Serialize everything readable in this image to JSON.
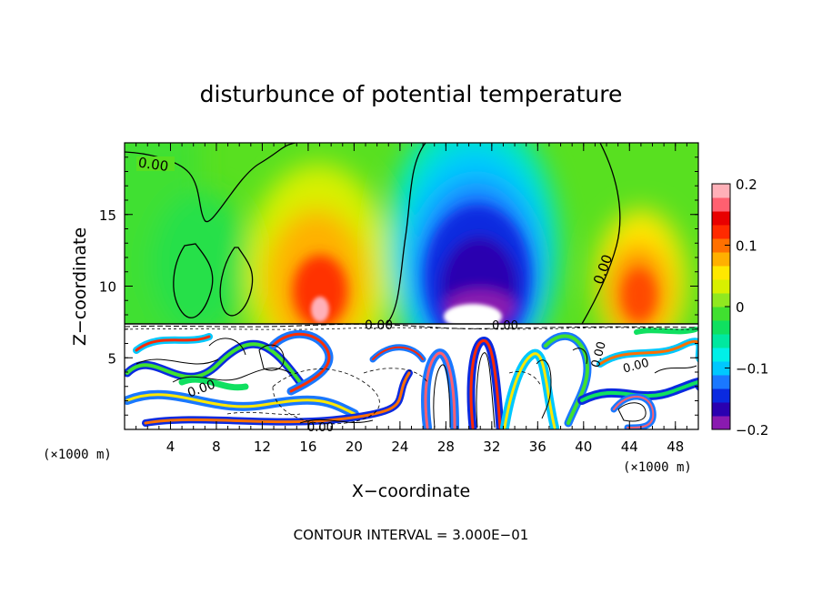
{
  "chart_data": {
    "type": "heatmap",
    "title": "disturbunce of potential temperature",
    "xlabel": "X−coordinate",
    "ylabel": "Z−coordinate",
    "x_unit": "(×1000 m)",
    "y_unit": "(×1000 m)",
    "xlim": [
      0,
      50
    ],
    "ylim": [
      0,
      20
    ],
    "x_ticks": [
      4,
      8,
      12,
      16,
      20,
      24,
      28,
      32,
      36,
      40,
      44,
      48
    ],
    "y_ticks": [
      5,
      10,
      15
    ],
    "colorbar": {
      "range": [
        -0.2,
        0.2
      ],
      "ticks": [
        0.2,
        0.1,
        0,
        -0.1,
        -0.2
      ],
      "tick_labels": [
        "0.2",
        "0.1",
        "0",
        "−0.1",
        "−0.2"
      ],
      "colors": [
        "#8a1ab0",
        "#2a00b0",
        "#0a2ae0",
        "#1a78ff",
        "#00c8ff",
        "#00f0e8",
        "#00e8a0",
        "#10e060",
        "#40e030",
        "#90e820",
        "#d8f000",
        "#ffe800",
        "#ffb000",
        "#ff7000",
        "#ff2a00",
        "#e80000",
        "#ff6070",
        "#ffb0b8"
      ]
    },
    "contour_labels": [
      "0.00",
      "0.00",
      "0.00",
      "0.00",
      "0.00",
      "0.00",
      "0.00",
      "0.00"
    ],
    "footer": "CONTOUR INTERVAL = 3.000E−01"
  }
}
